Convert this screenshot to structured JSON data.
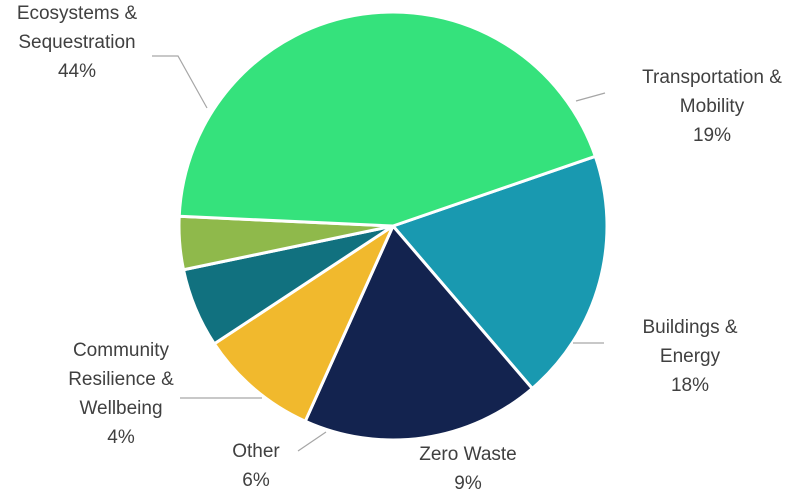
{
  "chart_data": {
    "type": "pie",
    "title": "",
    "legend": "none",
    "slices": [
      {
        "name": "Transportation & Mobility",
        "label_lines": [
          "Transportation &",
          "Mobility"
        ],
        "value": 19,
        "value_label": "19%",
        "color": "#1999b0"
      },
      {
        "name": "Buildings & Energy",
        "label_lines": [
          "Buildings &",
          "Energy"
        ],
        "value": 18,
        "value_label": "18%",
        "color": "#13234f"
      },
      {
        "name": "Zero Waste",
        "label_lines": [
          "Zero Waste"
        ],
        "value": 9,
        "value_label": "9%",
        "color": "#f1b92d"
      },
      {
        "name": "Other",
        "label_lines": [
          "Other"
        ],
        "value": 6,
        "value_label": "6%",
        "color": "#11717f"
      },
      {
        "name": "Community Resilience & Wellbeing",
        "label_lines": [
          "Community",
          "Resilience &",
          "Wellbeing"
        ],
        "value": 4,
        "value_label": "4%",
        "color": "#8fb94b"
      },
      {
        "name": "Ecosystems & Sequestration",
        "label_lines": [
          "Ecosystems &",
          "Sequestration"
        ],
        "value": 44,
        "value_label": "44%",
        "color": "#35e27c"
      }
    ]
  }
}
